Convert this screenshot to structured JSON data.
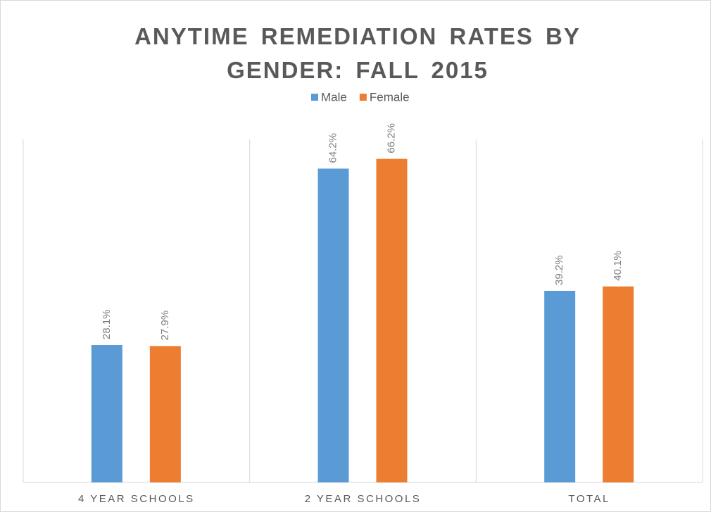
{
  "chart_data": {
    "type": "bar",
    "title": "ANYTIME REMEDIATION RATES BY GENDER: FALL 2015",
    "categories": [
      "4 YEAR SCHOOLS",
      "2 YEAR SCHOOLS",
      "TOTAL"
    ],
    "series": [
      {
        "name": "Male",
        "color": "#5b9bd5",
        "values": [
          28.1,
          64.2,
          39.2
        ],
        "value_labels": [
          "28.1%",
          "64.2%",
          "39.2%"
        ]
      },
      {
        "name": "Female",
        "color": "#ed7d31",
        "values": [
          27.9,
          66.2,
          40.1
        ],
        "value_labels": [
          "27.9%",
          "66.2%",
          "40.1%"
        ]
      }
    ],
    "legend": "top"
  }
}
